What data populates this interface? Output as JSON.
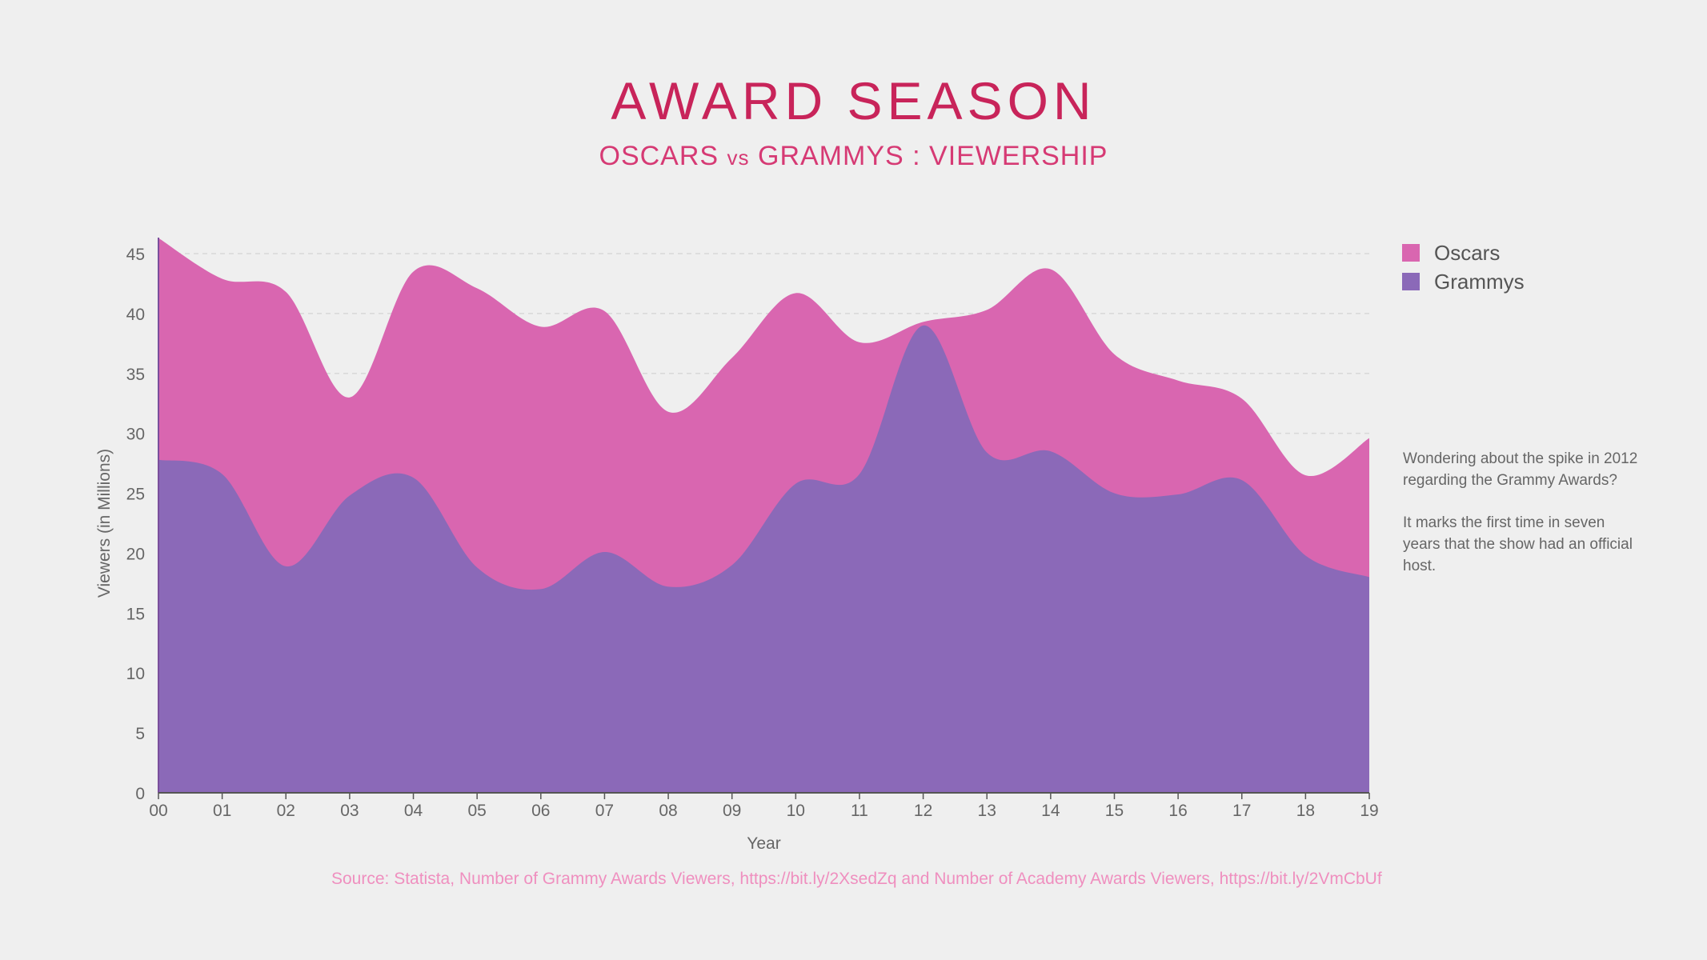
{
  "title": "AWARD SEASON",
  "subtitle": {
    "part1": "OSCARS ",
    "vs": "vs",
    "part2": " GRAMMYS : VIEWERSHIP"
  },
  "legend": [
    {
      "label": "Oscars",
      "color": "#d966b0"
    },
    {
      "label": "Grammys",
      "color": "#8b69b8"
    }
  ],
  "note": {
    "paragraph1": "Wondering about the spike in 2012 regarding the Grammy Awards?",
    "paragraph2": "It marks the first time in seven years that the show had an official host."
  },
  "source": "Source: Statista, Number of Grammy Awards Viewers, https://bit.ly/2XsedZq and Number of Academy Awards Viewers, https://bit.ly/2VmCbUf",
  "chart_data": {
    "type": "area",
    "xlabel": "Year",
    "ylabel": "Viewers (in Millions)",
    "x": [
      "00",
      "01",
      "02",
      "03",
      "04",
      "05",
      "06",
      "07",
      "08",
      "09",
      "10",
      "11",
      "12",
      "13",
      "14",
      "15",
      "16",
      "17",
      "18",
      "19"
    ],
    "ylim": [
      0,
      45
    ],
    "yticks": [
      0,
      5,
      10,
      15,
      20,
      25,
      30,
      35,
      40,
      45
    ],
    "grid": true,
    "legend_position": "top-right",
    "series": [
      {
        "name": "Oscars",
        "color": "#d966b0",
        "values": [
          46.3,
          42.9,
          41.8,
          33.0,
          43.5,
          42.1,
          38.9,
          40.2,
          31.8,
          36.3,
          41.7,
          37.6,
          39.3,
          40.3,
          43.7,
          36.6,
          34.4,
          32.9,
          26.5,
          29.6
        ]
      },
      {
        "name": "Grammys",
        "color": "#8b69b8",
        "values": [
          27.8,
          26.6,
          18.9,
          24.8,
          26.3,
          18.8,
          17.0,
          20.1,
          17.2,
          19.0,
          25.8,
          26.6,
          39.0,
          28.4,
          28.5,
          25.0,
          24.9,
          26.1,
          19.8,
          18.0
        ]
      }
    ]
  }
}
